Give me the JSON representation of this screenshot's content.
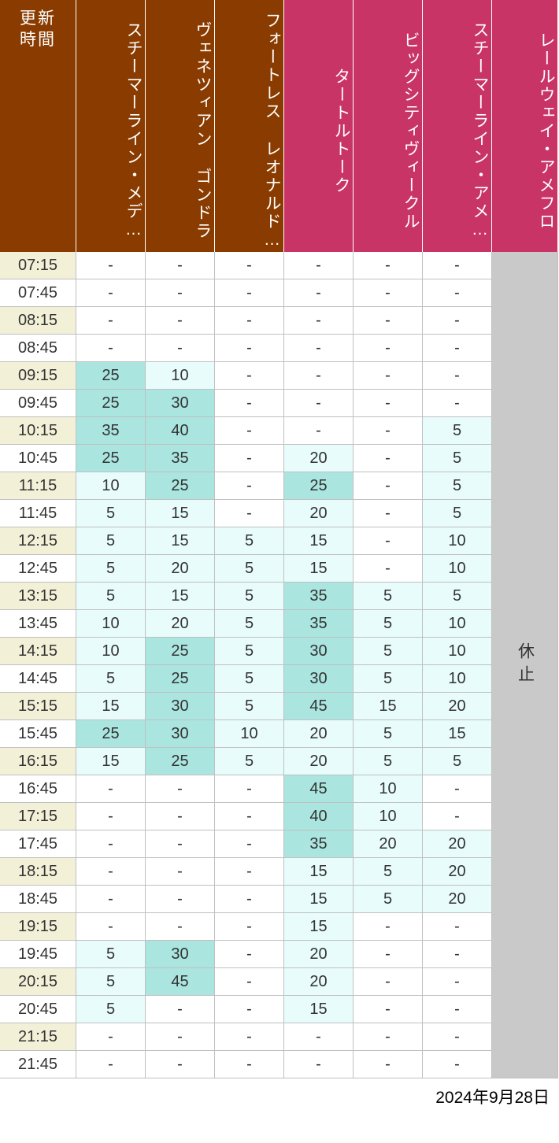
{
  "footer_date": "2024年9月28日",
  "suspended_label": "休止",
  "colors": {
    "header_brown": "#8a3c00",
    "header_pink": "#c93466",
    "time_bg_cream": "#f3f0d8",
    "time_bg_white": "#ffffff",
    "cell_white": "#ffffff",
    "cell_light_cyan": "#e7fcfb",
    "cell_mid_cyan": "#aae5e0",
    "suspended_bg": "#c9c9c9",
    "text_dark": "#333333"
  },
  "columns": [
    {
      "label_lines": [
        "更新",
        "時間"
      ],
      "type": "time",
      "header_color": "brown"
    },
    {
      "label": "スチーマーライン・メデ…",
      "type": "data",
      "header_color": "brown"
    },
    {
      "label": "ヴェネツィアン ゴンドラ",
      "type": "data",
      "header_color": "brown"
    },
    {
      "label": "フォートレス レオナルド…",
      "type": "data",
      "header_color": "brown"
    },
    {
      "label": "タートルトーク",
      "type": "data",
      "header_color": "pink"
    },
    {
      "label": "ビッグシティヴィークル",
      "type": "data",
      "header_color": "pink"
    },
    {
      "label": "スチーマーライン・アメ…",
      "type": "data",
      "header_color": "pink"
    },
    {
      "label": "レールウェイ・アメフロ",
      "type": "suspended",
      "header_color": "pink"
    }
  ],
  "time_row_alt": [
    "cream",
    "white"
  ],
  "rows": [
    {
      "time": "07:15",
      "vals": [
        "-",
        "-",
        "-",
        "-",
        "-",
        "-"
      ]
    },
    {
      "time": "07:45",
      "vals": [
        "-",
        "-",
        "-",
        "-",
        "-",
        "-"
      ]
    },
    {
      "time": "08:15",
      "vals": [
        "-",
        "-",
        "-",
        "-",
        "-",
        "-"
      ]
    },
    {
      "time": "08:45",
      "vals": [
        "-",
        "-",
        "-",
        "-",
        "-",
        "-"
      ]
    },
    {
      "time": "09:15",
      "vals": [
        "25",
        "10",
        "-",
        "-",
        "-",
        "-"
      ]
    },
    {
      "time": "09:45",
      "vals": [
        "25",
        "30",
        "-",
        "-",
        "-",
        "-"
      ]
    },
    {
      "time": "10:15",
      "vals": [
        "35",
        "40",
        "-",
        "-",
        "-",
        "5"
      ]
    },
    {
      "time": "10:45",
      "vals": [
        "25",
        "35",
        "-",
        "20",
        "-",
        "5"
      ]
    },
    {
      "time": "11:15",
      "vals": [
        "10",
        "25",
        "-",
        "25",
        "-",
        "5"
      ]
    },
    {
      "time": "11:45",
      "vals": [
        "5",
        "15",
        "-",
        "20",
        "-",
        "5"
      ]
    },
    {
      "time": "12:15",
      "vals": [
        "5",
        "15",
        "5",
        "15",
        "-",
        "10"
      ]
    },
    {
      "time": "12:45",
      "vals": [
        "5",
        "20",
        "5",
        "15",
        "-",
        "10"
      ]
    },
    {
      "time": "13:15",
      "vals": [
        "5",
        "15",
        "5",
        "35",
        "5",
        "5"
      ]
    },
    {
      "time": "13:45",
      "vals": [
        "10",
        "20",
        "5",
        "35",
        "5",
        "10"
      ]
    },
    {
      "time": "14:15",
      "vals": [
        "10",
        "25",
        "5",
        "30",
        "5",
        "10"
      ]
    },
    {
      "time": "14:45",
      "vals": [
        "5",
        "25",
        "5",
        "30",
        "5",
        "10"
      ]
    },
    {
      "time": "15:15",
      "vals": [
        "15",
        "30",
        "5",
        "45",
        "15",
        "20"
      ]
    },
    {
      "time": "15:45",
      "vals": [
        "25",
        "30",
        "10",
        "20",
        "5",
        "15"
      ]
    },
    {
      "time": "16:15",
      "vals": [
        "15",
        "25",
        "5",
        "20",
        "5",
        "5"
      ]
    },
    {
      "time": "16:45",
      "vals": [
        "-",
        "-",
        "-",
        "45",
        "10",
        "-"
      ]
    },
    {
      "time": "17:15",
      "vals": [
        "-",
        "-",
        "-",
        "40",
        "10",
        "-"
      ]
    },
    {
      "time": "17:45",
      "vals": [
        "-",
        "-",
        "-",
        "35",
        "20",
        "20"
      ]
    },
    {
      "time": "18:15",
      "vals": [
        "-",
        "-",
        "-",
        "15",
        "5",
        "20"
      ]
    },
    {
      "time": "18:45",
      "vals": [
        "-",
        "-",
        "-",
        "15",
        "5",
        "20"
      ]
    },
    {
      "time": "19:15",
      "vals": [
        "-",
        "-",
        "-",
        "15",
        "-",
        "-"
      ]
    },
    {
      "time": "19:45",
      "vals": [
        "5",
        "30",
        "-",
        "20",
        "-",
        "-"
      ]
    },
    {
      "time": "20:15",
      "vals": [
        "5",
        "45",
        "-",
        "20",
        "-",
        "-"
      ]
    },
    {
      "time": "20:45",
      "vals": [
        "5",
        "-",
        "-",
        "15",
        "-",
        "-"
      ]
    },
    {
      "time": "21:15",
      "vals": [
        "-",
        "-",
        "-",
        "-",
        "-",
        "-"
      ]
    },
    {
      "time": "21:45",
      "vals": [
        "-",
        "-",
        "-",
        "-",
        "-",
        "-"
      ]
    }
  ],
  "cell_color_thresholds": {
    "mid_cyan_min": 25,
    "light_cyan_min": 1
  }
}
